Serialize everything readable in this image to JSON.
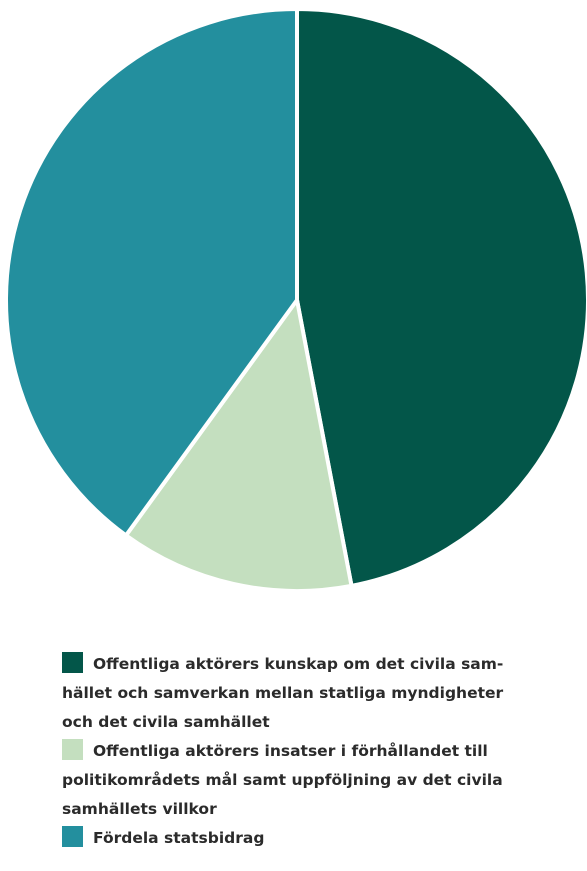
{
  "chart_data": {
    "type": "pie",
    "slices": [
      {
        "label": "Offentliga aktörers kunskap om det civila sam-\nhället och samverkan mellan statliga myndigheter\noch det civila samhället",
        "value": 47,
        "color": "#035649"
      },
      {
        "label": "Offentliga aktörers insatser i förhållandet till\npolitikområdets mål samt uppföljning av det civila\nsamhällets villkor",
        "value": 13,
        "color": "#c4dfbf"
      },
      {
        "label": "Fördela statsbidrag",
        "value": 40,
        "color": "#238f9e"
      }
    ],
    "legend_position": "bottom"
  }
}
